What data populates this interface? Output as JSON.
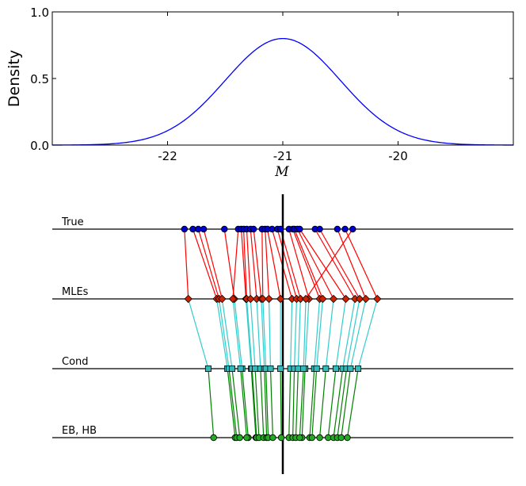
{
  "chart_data": [
    {
      "type": "line",
      "title": "",
      "xlabel": "M",
      "ylabel": "Density",
      "xlim": [
        -23.0,
        -19.0
      ],
      "ylim": [
        0.0,
        1.0
      ],
      "xticks": [
        -22,
        -21,
        -20
      ],
      "xtick_labels": [
        "-22",
        "-21",
        "-20"
      ],
      "yticks": [
        0.0,
        0.5,
        1.0
      ],
      "ytick_labels": [
        "0.0",
        "0.5",
        "1.0"
      ],
      "grid": false,
      "series": [
        {
          "distribution": "normal",
          "mean": -21.0,
          "sd": 0.5,
          "peak": 0.8,
          "color": "#0000ff"
        }
      ]
    },
    {
      "type": "scatter",
      "title": "",
      "xlim": [
        -3.0,
        3.0
      ],
      "reference_x": 0.0,
      "reference_color": "#000000",
      "rows": [
        {
          "label": "True",
          "marker": "circle",
          "color": "#0000cc",
          "values": [
            -1.28,
            -1.17,
            -1.1,
            -1.03,
            -0.76,
            -0.58,
            -0.54,
            -0.51,
            -0.47,
            -0.42,
            -0.38,
            -0.27,
            -0.23,
            -0.2,
            -0.14,
            -0.07,
            -0.03,
            0.08,
            0.13,
            0.15,
            0.19,
            0.22,
            0.42,
            0.48,
            0.71,
            0.81,
            0.91
          ]
        },
        {
          "label": "MLEs",
          "marker": "diamond",
          "color": "#cc2200",
          "values": [
            -1.23,
            -0.86,
            -0.83,
            -0.79,
            -0.63,
            -0.65,
            -0.48,
            -0.47,
            -0.42,
            -0.34,
            -0.28,
            -0.26,
            -0.18,
            -0.03,
            0.12,
            0.18,
            0.23,
            0.34,
            0.48,
            0.52,
            0.66,
            0.82,
            0.94,
            1.0,
            1.08,
            1.23,
            0.3
          ]
        },
        {
          "label": "Cond",
          "marker": "square",
          "color": "#33bbbb",
          "values": [
            -0.97,
            -0.72,
            -0.7,
            -0.66,
            -0.53,
            -0.55,
            -0.41,
            -0.4,
            -0.36,
            -0.29,
            -0.24,
            -0.22,
            -0.16,
            -0.03,
            0.1,
            0.15,
            0.2,
            0.29,
            0.41,
            0.44,
            0.56,
            0.69,
            0.78,
            0.83,
            0.88,
            0.98,
            0.27
          ]
        },
        {
          "label": "EB, HB",
          "marker": "circle",
          "color": "#22aa22",
          "values": [
            -0.9,
            -0.62,
            -0.6,
            -0.56,
            -0.45,
            -0.47,
            -0.35,
            -0.34,
            -0.31,
            -0.25,
            -0.21,
            -0.19,
            -0.13,
            -0.02,
            0.08,
            0.13,
            0.17,
            0.25,
            0.35,
            0.38,
            0.48,
            0.59,
            0.66,
            0.71,
            0.76,
            0.84,
            0.22
          ]
        }
      ],
      "connectors": [
        {
          "from": "True",
          "to": "MLEs",
          "color": "#ff0000"
        },
        {
          "from": "MLEs",
          "to": "Cond",
          "color": "#33cccc"
        },
        {
          "from": "Cond",
          "to": "EB, HB",
          "color": "#008000"
        }
      ]
    }
  ]
}
